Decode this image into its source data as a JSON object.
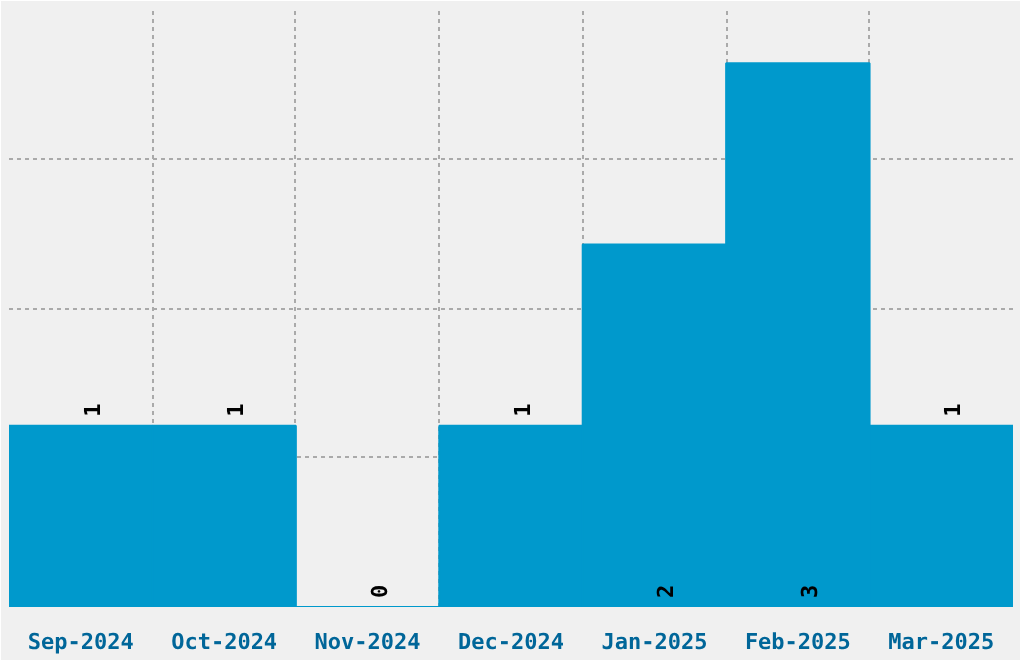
{
  "chart_data": {
    "type": "bar",
    "categories": [
      "Sep-2024",
      "Oct-2024",
      "Nov-2024",
      "Dec-2024",
      "Jan-2025",
      "Feb-2025",
      "Mar-2025"
    ],
    "values": [
      1,
      1,
      0,
      1,
      2,
      3,
      1
    ],
    "color": "#0099cc",
    "ylim": [
      0,
      3.3
    ],
    "tick_labels": "x",
    "grid": true,
    "data_labels": true
  }
}
